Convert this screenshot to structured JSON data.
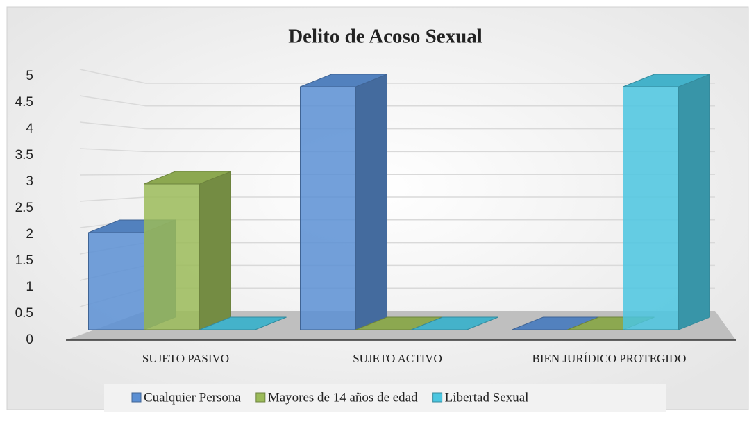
{
  "chart_data": {
    "type": "bar3d",
    "title": "Delito de Acoso Sexual",
    "categories": [
      "SUJETO PASIVO",
      "SUJETO ACTIVO",
      "BIEN JURÍDICO PROTEGIDO"
    ],
    "series": [
      {
        "name": "Cualquier Persona",
        "color": "#5b8fd3",
        "values": [
          2,
          5,
          0
        ]
      },
      {
        "name": "Mayores de 14 años de edad",
        "color": "#9bbb59",
        "values": [
          3,
          0,
          0
        ]
      },
      {
        "name": "Libertad Sexual",
        "color": "#4bc6e0",
        "values": [
          0,
          0,
          5
        ]
      }
    ],
    "ylim": [
      0,
      5
    ],
    "yticks": [
      0,
      0.5,
      1,
      1.5,
      2,
      2.5,
      3,
      3.5,
      4,
      4.5,
      5
    ],
    "grid": true
  }
}
